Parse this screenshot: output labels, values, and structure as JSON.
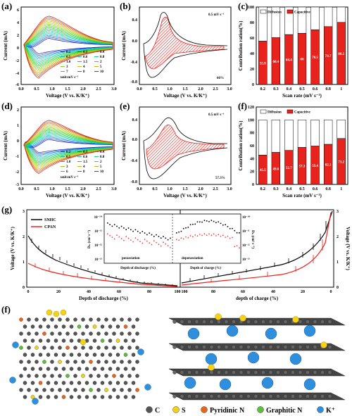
{
  "figure": {
    "panel_labels": [
      "(a)",
      "(b)",
      "(c)",
      "(d)",
      "(e)",
      "(f)",
      "(g)",
      "(f)"
    ]
  },
  "panel_a": {
    "ylabel": "Current (mA)",
    "xlabel": "Voltage (V vs. K/K⁺)",
    "yticks": [
      "6",
      "4",
      "2",
      "0",
      "-2",
      "-4",
      "-6"
    ],
    "xticks": [
      "0.0",
      "0.5",
      "1.0",
      "1.5",
      "2.0",
      "2.5",
      "3.0"
    ],
    "legend": [
      "0.2",
      "0.3",
      "0.4",
      "0.5",
      "0.6",
      "0.8",
      "1.0",
      "1.5",
      "2",
      "3",
      "4",
      "5",
      "7",
      "8",
      "10"
    ],
    "legend_unit": "unit:mV s⁻¹"
  },
  "panel_b": {
    "ylabel": "Current (mA)",
    "xlabel": "Voltage (V vs. K/K⁺)",
    "yticks": [
      "0.4",
      "0.0",
      "-0.4",
      "-0.8"
    ],
    "xticks": [
      "0.0",
      "0.5",
      "1.0",
      "1.5",
      "2.0",
      "2.5",
      "3.0"
    ],
    "rate": "0.5 mV s⁻¹",
    "percent": "66%"
  },
  "panel_c": {
    "ylabel": "Contribution ration(%)",
    "xlabel": "Scan rate (mV s⁻¹)",
    "legend_diffusion": "Diffusion",
    "legend_capacitive": "Capacitive",
    "yticks": [
      "0",
      "20",
      "40",
      "60",
      "80",
      "100"
    ],
    "colors": {
      "capacitive": "#e8221c",
      "diffusion": "#ffffff"
    }
  },
  "panel_d": {
    "ylabel": "Current (mA)",
    "xlabel": "Voltage (V vs. K/K⁺)",
    "yticks": [
      "2",
      "1",
      "0",
      "-1",
      "-2",
      "-3"
    ],
    "xticks": [
      "0.0",
      "0.5",
      "1.0",
      "1.5",
      "2.0",
      "2.5",
      "3.0"
    ],
    "legend": [
      "0.2",
      "0.3",
      "0.4",
      "0.5",
      "0.6",
      "0.8",
      "1.0",
      "1.5",
      "2",
      "3",
      "4",
      "5",
      "6",
      "8",
      "10"
    ],
    "legend_unit": "unit:mV s⁻¹"
  },
  "panel_e": {
    "ylabel": "Current (mA)",
    "xlabel": "Voltage (V vs. K/K⁺)",
    "yticks": [
      "0.4",
      "0.0",
      "-0.4",
      "-0.8"
    ],
    "xticks": [
      "0.0",
      "0.5",
      "1.0",
      "1.5",
      "2.0",
      "2.5",
      "3.0"
    ],
    "rate": "0.5 mV s⁻¹",
    "percent": "57.3%"
  },
  "panel_f": {
    "ylabel": "Contribution ration(%)",
    "xlabel": "Scan rate (mV s⁻¹)",
    "legend_diffusion": "Diffusion",
    "legend_capacitive": "Capacitive",
    "yticks": [
      "0",
      "20",
      "40",
      "60",
      "80",
      "100",
      "120"
    ]
  },
  "panel_g": {
    "ylabel_left": "Voltage (V vs. K/K⁺)",
    "ylabel_right": "Voltage (V vs. K/K⁺)",
    "xlabel_left": "Depth of discharge (%)",
    "xlabel_right": "depth of charge (%)",
    "legend": [
      "SNHC",
      "CPAN"
    ],
    "legend_colors": [
      "#000000",
      "#e8221c"
    ],
    "inset_ylabel": "Dₖ (cm² s⁻¹)",
    "inset_ylabel_right": "Dₖ (cm² s⁻¹)",
    "inset_xlabel_left": "Depth of discharge (%)",
    "inset_xlabel_right": "Depth of charge (%)",
    "inset_left_text": "potassiation",
    "inset_right_text": "depotassiation",
    "inset_yticks": [
      "10⁻¹⁰",
      "10⁻¹¹",
      "10⁻¹²",
      "10⁻¹³"
    ],
    "xticks_left": [
      "0",
      "20",
      "40",
      "60",
      "80",
      "100"
    ],
    "xticks_right": [
      "100",
      "80",
      "60",
      "40",
      "20",
      "0"
    ],
    "yticks": [
      "0",
      "1",
      "2",
      "3"
    ]
  },
  "structure_legend": {
    "items": [
      {
        "label": "C",
        "color": "#555555"
      },
      {
        "label": "S",
        "color": "#f2d21b"
      },
      {
        "label": "Pyridinic N",
        "color": "#e8661c"
      },
      {
        "label": "Graphitic N",
        "color": "#5cbf3a"
      },
      {
        "label": "K⁺",
        "color": "#2f8fdc"
      }
    ]
  },
  "chart_data": [
    {
      "type": "bar",
      "title": "",
      "categories": [
        "0.2",
        "0.3",
        "0.4",
        "0.5",
        "0.6",
        "0.8",
        "1"
      ],
      "series": [
        {
          "name": "Capacitive",
          "values": [
            55.9,
            60.4,
            64.4,
            66,
            70.5,
            74.7,
            80.2
          ]
        },
        {
          "name": "Diffusion",
          "values": [
            44.1,
            39.6,
            35.6,
            34,
            29.5,
            25.3,
            19.8
          ]
        }
      ],
      "xlabel": "Scan rate (mV s⁻¹)",
      "ylabel": "Contribution ration(%)",
      "ylim": [
        0,
        100
      ]
    },
    {
      "type": "bar",
      "title": "",
      "categories": [
        "0.2",
        "0.3",
        "0.4",
        "0.5",
        "0.6",
        "0.8",
        "1"
      ],
      "series": [
        {
          "name": "Capacitive",
          "values": [
            45.5,
            49.6,
            52.7,
            57.3,
            59.4,
            62.1,
            71.2
          ]
        },
        {
          "name": "Diffusion",
          "values": [
            54.5,
            50.4,
            47.3,
            42.7,
            40.6,
            37.9,
            28.8
          ]
        }
      ],
      "xlabel": "Scan rate (mV s⁻¹)",
      "ylabel": "Contribution ration(%)",
      "ylim": [
        0,
        120
      ]
    }
  ]
}
